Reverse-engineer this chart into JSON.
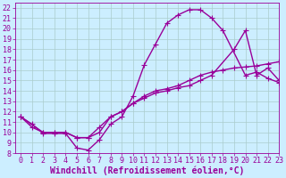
{
  "xlabel": "Windchill (Refroidissement éolien,°C)",
  "background_color": "#cceeff",
  "line_color": "#990099",
  "xlim": [
    -0.5,
    23
  ],
  "ylim": [
    8,
    22.5
  ],
  "xticks": [
    0,
    1,
    2,
    3,
    4,
    5,
    6,
    7,
    8,
    9,
    10,
    11,
    12,
    13,
    14,
    15,
    16,
    17,
    18,
    19,
    20,
    21,
    22,
    23
  ],
  "yticks": [
    8,
    9,
    10,
    11,
    12,
    13,
    14,
    15,
    16,
    17,
    18,
    19,
    20,
    21,
    22
  ],
  "curve1_x": [
    0,
    1,
    2,
    3,
    4,
    5,
    6,
    7,
    8,
    9,
    10,
    11,
    12,
    13,
    14,
    15,
    16,
    17,
    18,
    20,
    21,
    22,
    23
  ],
  "curve1_y": [
    11.5,
    10.8,
    9.9,
    9.9,
    9.9,
    8.5,
    8.3,
    9.3,
    10.8,
    11.5,
    13.5,
    16.5,
    18.5,
    20.5,
    21.3,
    21.8,
    21.8,
    21.0,
    19.8,
    15.5,
    15.8,
    15.2,
    14.8
  ],
  "curve2_x": [
    0,
    2,
    3,
    4,
    5,
    6,
    7,
    8,
    9,
    10,
    11,
    12,
    13,
    14,
    15,
    16,
    17,
    18,
    19,
    20,
    21,
    22,
    23
  ],
  "curve2_y": [
    11.5,
    10.0,
    10.0,
    10.0,
    9.5,
    9.5,
    10.0,
    11.5,
    12.0,
    12.8,
    13.5,
    14.0,
    14.2,
    14.5,
    15.0,
    15.5,
    15.8,
    16.0,
    16.2,
    16.3,
    16.4,
    16.6,
    16.8
  ],
  "curve3_x": [
    0,
    1,
    2,
    3,
    4,
    5,
    6,
    7,
    8,
    9,
    10,
    11,
    12,
    13,
    14,
    15,
    16,
    17,
    19,
    20,
    21,
    22,
    23
  ],
  "curve3_y": [
    11.5,
    10.5,
    10.0,
    10.0,
    10.0,
    9.5,
    9.5,
    10.5,
    11.5,
    12.0,
    12.8,
    13.3,
    13.8,
    14.0,
    14.3,
    14.5,
    15.0,
    15.5,
    18.0,
    19.8,
    15.5,
    16.2,
    15.0
  ],
  "grid_color": "#aacccc",
  "marker": "+",
  "markersize": 4,
  "linewidth": 1.0,
  "tick_fontsize": 6,
  "xlabel_fontsize": 7
}
